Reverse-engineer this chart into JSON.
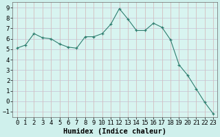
{
  "x": [
    0,
    1,
    2,
    3,
    4,
    5,
    6,
    7,
    8,
    9,
    10,
    11,
    12,
    13,
    14,
    15,
    16,
    17,
    18,
    19,
    20,
    21,
    22,
    23
  ],
  "y": [
    5.1,
    5.4,
    6.5,
    6.1,
    6.0,
    5.5,
    5.2,
    5.1,
    6.2,
    6.2,
    6.5,
    7.4,
    8.9,
    7.9,
    6.8,
    6.8,
    7.5,
    7.1,
    5.9,
    3.5,
    2.5,
    1.2,
    -0.1,
    -1.2
  ],
  "line_color": "#2d7d6e",
  "marker": "+",
  "marker_size": 3,
  "bg_color": "#cff0ec",
  "plot_bg_color": "#d8f4f0",
  "grid_color_h": "#c8c8d8",
  "grid_color_v": "#d4bebe",
  "xlabel": "Humidex (Indice chaleur)",
  "xlim": [
    -0.5,
    23.5
  ],
  "ylim": [
    -1.5,
    9.5
  ],
  "xticks": [
    0,
    1,
    2,
    3,
    4,
    5,
    6,
    7,
    8,
    9,
    10,
    11,
    12,
    13,
    14,
    15,
    16,
    17,
    18,
    19,
    20,
    21,
    22,
    23
  ],
  "yticks": [
    -1,
    0,
    1,
    2,
    3,
    4,
    5,
    6,
    7,
    8,
    9
  ],
  "tick_fontsize": 6.5,
  "label_fontsize": 7.5
}
